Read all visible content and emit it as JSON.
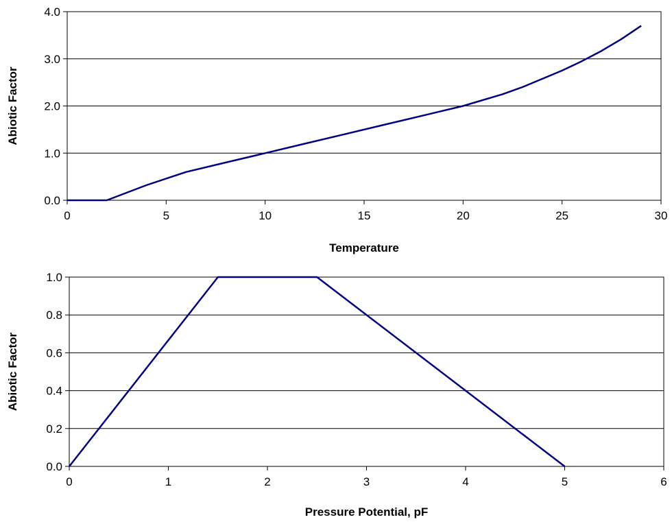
{
  "chart_data": [
    {
      "type": "line",
      "title": "",
      "xlabel": "Temperature",
      "ylabel": "Abiotic Factor",
      "xlim": [
        0,
        30
      ],
      "ylim": [
        0,
        4
      ],
      "x_ticks": [
        "0",
        "5",
        "10",
        "15",
        "20",
        "25",
        "30"
      ],
      "y_ticks": [
        "0.0",
        "1.0",
        "2.0",
        "3.0",
        "4.0"
      ],
      "grid": "horizontal",
      "line_color": "#000080",
      "series": [
        {
          "x": [
            0,
            2,
            4,
            6,
            8,
            10,
            12,
            14,
            16,
            18,
            20,
            22,
            23,
            25,
            26,
            27,
            28,
            29
          ],
          "y": [
            0.0,
            0.0,
            0.32,
            0.6,
            0.8,
            1.0,
            1.2,
            1.4,
            1.6,
            1.8,
            2.0,
            2.25,
            2.4,
            2.75,
            2.95,
            3.17,
            3.42,
            3.7
          ]
        }
      ]
    },
    {
      "type": "line",
      "title": "",
      "xlabel": "Pressure Potential, pF",
      "ylabel": "Abiotic Factor",
      "xlim": [
        0,
        6
      ],
      "ylim": [
        0,
        1
      ],
      "x_ticks": [
        "0",
        "1",
        "2",
        "3",
        "4",
        "5",
        "6"
      ],
      "y_ticks": [
        "0.0",
        "0.2",
        "0.4",
        "0.6",
        "0.8",
        "1.0"
      ],
      "grid": "horizontal",
      "line_color": "#000080",
      "series": [
        {
          "x": [
            0,
            1.5,
            2.5,
            5
          ],
          "y": [
            0.0,
            1.0,
            1.0,
            0.0
          ]
        }
      ]
    }
  ]
}
